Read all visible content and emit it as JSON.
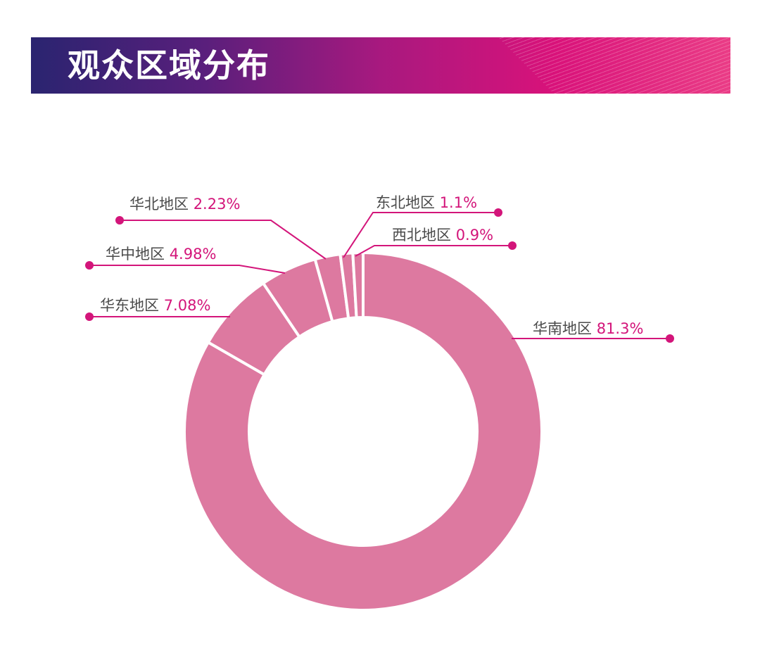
{
  "title": "观众区域分布",
  "colors": {
    "slice": "#dd79a0",
    "accent": "#d3157a",
    "label": "#4a4a4a"
  },
  "chart_data": {
    "type": "pie",
    "variant": "donut",
    "title": "观众区域分布",
    "unit": "%",
    "slices": [
      {
        "name": "华南地区",
        "value": 81.3,
        "label": "81.3%"
      },
      {
        "name": "华东地区",
        "value": 7.08,
        "label": "7.08%"
      },
      {
        "name": "华中地区",
        "value": 4.98,
        "label": "4.98%"
      },
      {
        "name": "华北地区",
        "value": 2.23,
        "label": "2.23%"
      },
      {
        "name": "东北地区",
        "value": 1.1,
        "label": "1.1%"
      },
      {
        "name": "西北地区",
        "value": 0.9,
        "label": "0.9%"
      }
    ]
  }
}
